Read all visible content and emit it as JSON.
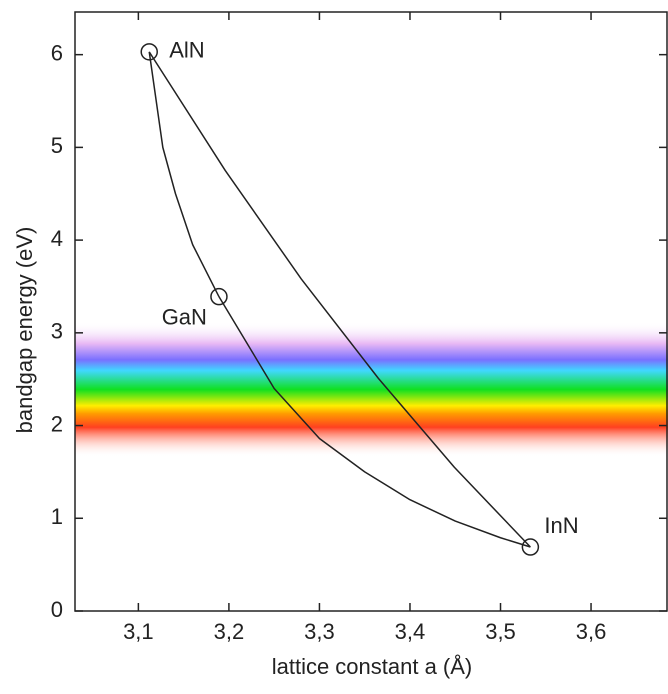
{
  "chart_data": {
    "type": "line",
    "xlabel": "lattice constant a (Å)",
    "ylabel": "bandgap energy (eV)",
    "xlim": [
      3.03,
      3.685
    ],
    "ylim": [
      0,
      6.46
    ],
    "xticks": [
      {
        "value": 3.1,
        "label": "3,1"
      },
      {
        "value": 3.2,
        "label": "3,2"
      },
      {
        "value": 3.3,
        "label": "3,3"
      },
      {
        "value": 3.4,
        "label": "3,4"
      },
      {
        "value": 3.5,
        "label": "3,5"
      },
      {
        "value": 3.6,
        "label": "3,6"
      }
    ],
    "yticks": [
      0,
      1,
      2,
      3,
      4,
      5,
      6
    ],
    "series": [
      {
        "color": "#222222",
        "x": [
          3.112,
          3.196,
          3.28,
          3.365,
          3.449,
          3.533
        ],
        "values": [
          6.03,
          4.75,
          3.58,
          2.51,
          1.55,
          0.69
        ]
      },
      {
        "color": "#222222",
        "x": [
          3.112,
          3.127,
          3.141,
          3.16,
          3.189
        ],
        "values": [
          6.03,
          5.0,
          4.5,
          3.95,
          3.39
        ]
      },
      {
        "color": "#222222",
        "x": [
          3.189,
          3.25,
          3.3,
          3.35,
          3.4,
          3.45,
          3.5,
          3.533
        ],
        "values": [
          3.39,
          2.4,
          1.86,
          1.5,
          1.2,
          0.97,
          0.79,
          0.69
        ]
      }
    ],
    "points": {
      "color": "#222222",
      "x": [
        3.112,
        3.189,
        3.533
      ],
      "values": [
        6.03,
        3.39,
        0.69
      ],
      "labels": [
        "AlN",
        "GaN",
        "InN"
      ]
    }
  }
}
